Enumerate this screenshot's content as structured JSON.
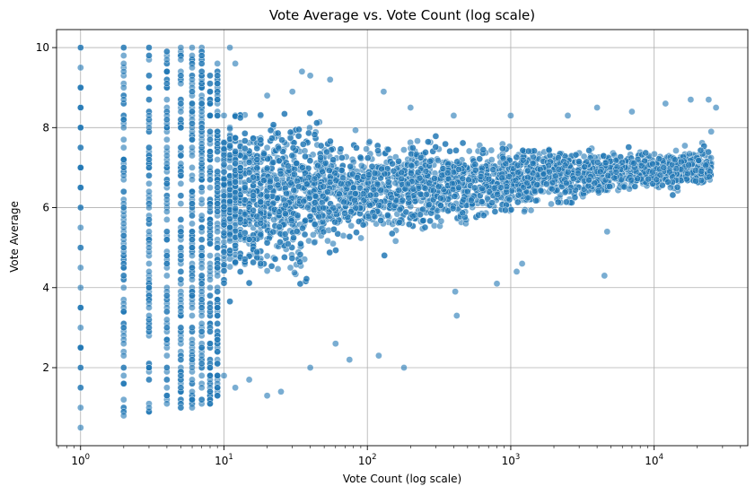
{
  "chart_data": {
    "type": "scatter",
    "title": "Vote Average vs. Vote Count (log scale)",
    "xlabel": "Vote Count (log scale)",
    "ylabel": "Vote Average",
    "x_scale": "log",
    "xlim": [
      0.68,
      45000
    ],
    "ylim": [
      0.05,
      10.45
    ],
    "grid": true,
    "legend": "none",
    "x_ticks": [
      {
        "value": 1,
        "base": "10",
        "exp": "0"
      },
      {
        "value": 10,
        "base": "10",
        "exp": "1"
      },
      {
        "value": 100,
        "base": "10",
        "exp": "2"
      },
      {
        "value": 1000,
        "base": "10",
        "exp": "3"
      },
      {
        "value": 10000,
        "base": "10",
        "exp": "4"
      }
    ],
    "y_ticks": [
      "2",
      "4",
      "6",
      "8",
      "10"
    ],
    "marker_color": "#1f77b4",
    "marker_alpha": 0.6,
    "points": [
      [
        1,
        10
      ],
      [
        1,
        9.5
      ],
      [
        1,
        9
      ],
      [
        1,
        8.5
      ],
      [
        1,
        8
      ],
      [
        1,
        7.5
      ],
      [
        1,
        7
      ],
      [
        1,
        6.5
      ],
      [
        1,
        6
      ],
      [
        1,
        5.5
      ],
      [
        1,
        5
      ],
      [
        1,
        4.5
      ],
      [
        1,
        4
      ],
      [
        1,
        3.5
      ],
      [
        1,
        3
      ],
      [
        1,
        2.5
      ],
      [
        1,
        2
      ],
      [
        1,
        1.5
      ],
      [
        1,
        1
      ],
      [
        1,
        0.5
      ],
      [
        2,
        10
      ],
      [
        2,
        9
      ],
      [
        2,
        8
      ],
      [
        2,
        7
      ],
      [
        2,
        6
      ],
      [
        2,
        5
      ],
      [
        2,
        4
      ],
      [
        2,
        3
      ],
      [
        2,
        2
      ],
      [
        2,
        1.2
      ],
      [
        2,
        0.8
      ],
      [
        3,
        10
      ],
      [
        3,
        9
      ],
      [
        3,
        8
      ],
      [
        3,
        7
      ],
      [
        3,
        6
      ],
      [
        3,
        5
      ],
      [
        3,
        4
      ],
      [
        3,
        3
      ],
      [
        3,
        2
      ],
      [
        3,
        1
      ],
      [
        5,
        10
      ],
      [
        5,
        1
      ],
      [
        6,
        10
      ],
      [
        6,
        1.2
      ],
      [
        7,
        9.8
      ],
      [
        8,
        1.1
      ],
      [
        11,
        10
      ],
      [
        12,
        9.6
      ],
      [
        20,
        8.8
      ],
      [
        30,
        8.9
      ],
      [
        35,
        9.4
      ],
      [
        40,
        9.3
      ],
      [
        55,
        9.2
      ],
      [
        130,
        8.9
      ],
      [
        200,
        8.5
      ],
      [
        400,
        8.3
      ],
      [
        1000,
        8.3
      ],
      [
        2500,
        8.3
      ],
      [
        4000,
        8.5
      ],
      [
        7000,
        8.4
      ],
      [
        12000,
        8.6
      ],
      [
        18000,
        8.7
      ],
      [
        24000,
        8.7
      ],
      [
        27000,
        8.5
      ],
      [
        25000,
        7.9
      ],
      [
        13000,
        6.5
      ],
      [
        4500,
        4.3
      ],
      [
        4700,
        5.4
      ],
      [
        1200,
        4.6
      ],
      [
        1100,
        4.4
      ],
      [
        800,
        4.1
      ],
      [
        410,
        3.9
      ],
      [
        420,
        3.3
      ],
      [
        180,
        2.0
      ],
      [
        120,
        2.3
      ],
      [
        75,
        2.2
      ],
      [
        60,
        2.6
      ],
      [
        40,
        2.0
      ],
      [
        25,
        1.4
      ],
      [
        20,
        1.3
      ],
      [
        15,
        1.7
      ],
      [
        12,
        1.5
      ],
      [
        10,
        1.8
      ]
    ]
  }
}
